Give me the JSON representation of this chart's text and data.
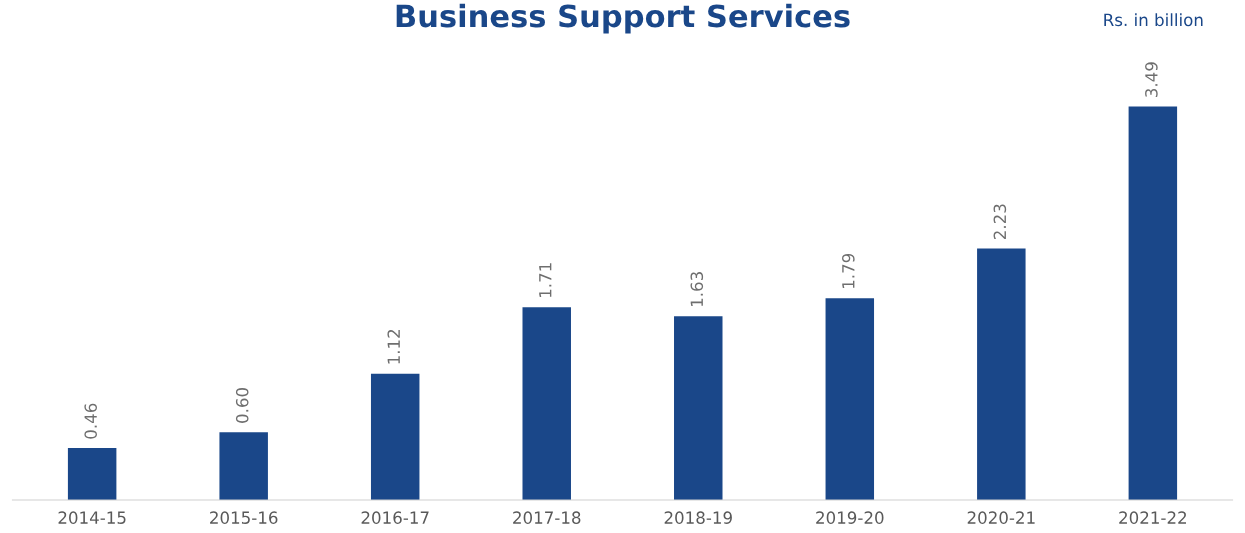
{
  "chart_data": {
    "type": "bar",
    "title": "Business Support Services",
    "annotations": [
      "Rs. in billion"
    ],
    "categories": [
      "2014-15",
      "2015-16",
      "2016-17",
      "2017-18",
      "2018-19",
      "2019-20",
      "2020-21",
      "2021-22"
    ],
    "values": [
      0.46,
      0.6,
      1.12,
      1.71,
      1.63,
      1.79,
      2.23,
      3.49
    ],
    "value_labels": [
      "0.46",
      "0.60",
      "1.12",
      "1.71",
      "1.63",
      "1.79",
      "2.23",
      "3.49"
    ],
    "color": "#1a4789",
    "grid": false,
    "legend": false
  }
}
